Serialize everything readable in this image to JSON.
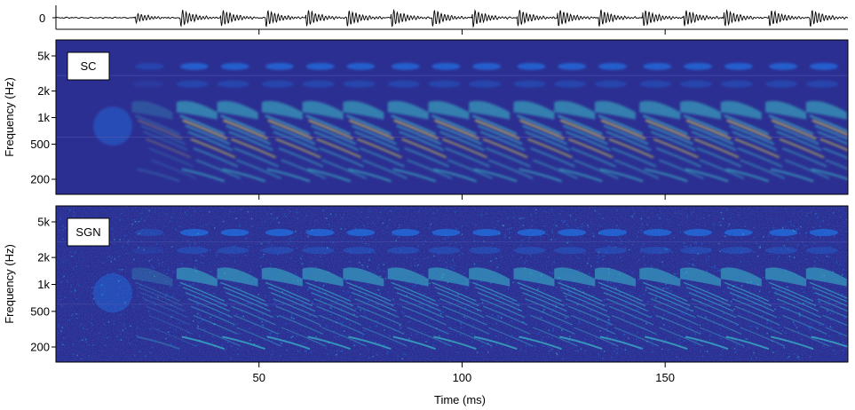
{
  "colors": {
    "spec_bg": "#2c2f92",
    "spec_mid": "#1f6fe0",
    "spec_high": "#39c0c8",
    "spec_peak": "#f2e43c",
    "line": "#000000"
  },
  "chart_data": [
    {
      "type": "line",
      "panel": "waveform",
      "ylabel": "",
      "yticks": [
        "0"
      ],
      "xlim": [
        0,
        195
      ],
      "xticks": [
        50,
        100,
        150
      ],
      "pulse_times_ms": [
        20,
        31,
        41,
        52,
        62,
        72,
        83,
        93,
        103,
        114,
        124,
        134,
        145,
        155,
        165,
        176,
        186
      ],
      "grid": false
    },
    {
      "type": "heatmap",
      "panel": "spectrogram",
      "label": "SC",
      "ylabel": "Frequency (Hz)",
      "yticks": [
        "5k",
        "2k",
        "1k",
        "500",
        "200"
      ],
      "ytick_values_hz": [
        5000,
        2000,
        1000,
        500,
        200
      ],
      "xlim": [
        0,
        195
      ],
      "xticks": [
        50,
        100,
        150
      ],
      "colormap": "parula",
      "noise": "low"
    },
    {
      "type": "heatmap",
      "panel": "spectrogram",
      "label": "SGN",
      "ylabel": "Frequency (Hz)",
      "xlabel": "Time (ms)",
      "yticks": [
        "5k",
        "2k",
        "1k",
        "500",
        "200"
      ],
      "ytick_values_hz": [
        5000,
        2000,
        1000,
        500,
        200
      ],
      "xlim": [
        0,
        195
      ],
      "xticks": [
        50,
        100,
        150
      ],
      "xticklabels": [
        "50",
        "100",
        "150"
      ],
      "colormap": "parula",
      "noise": "high"
    }
  ]
}
